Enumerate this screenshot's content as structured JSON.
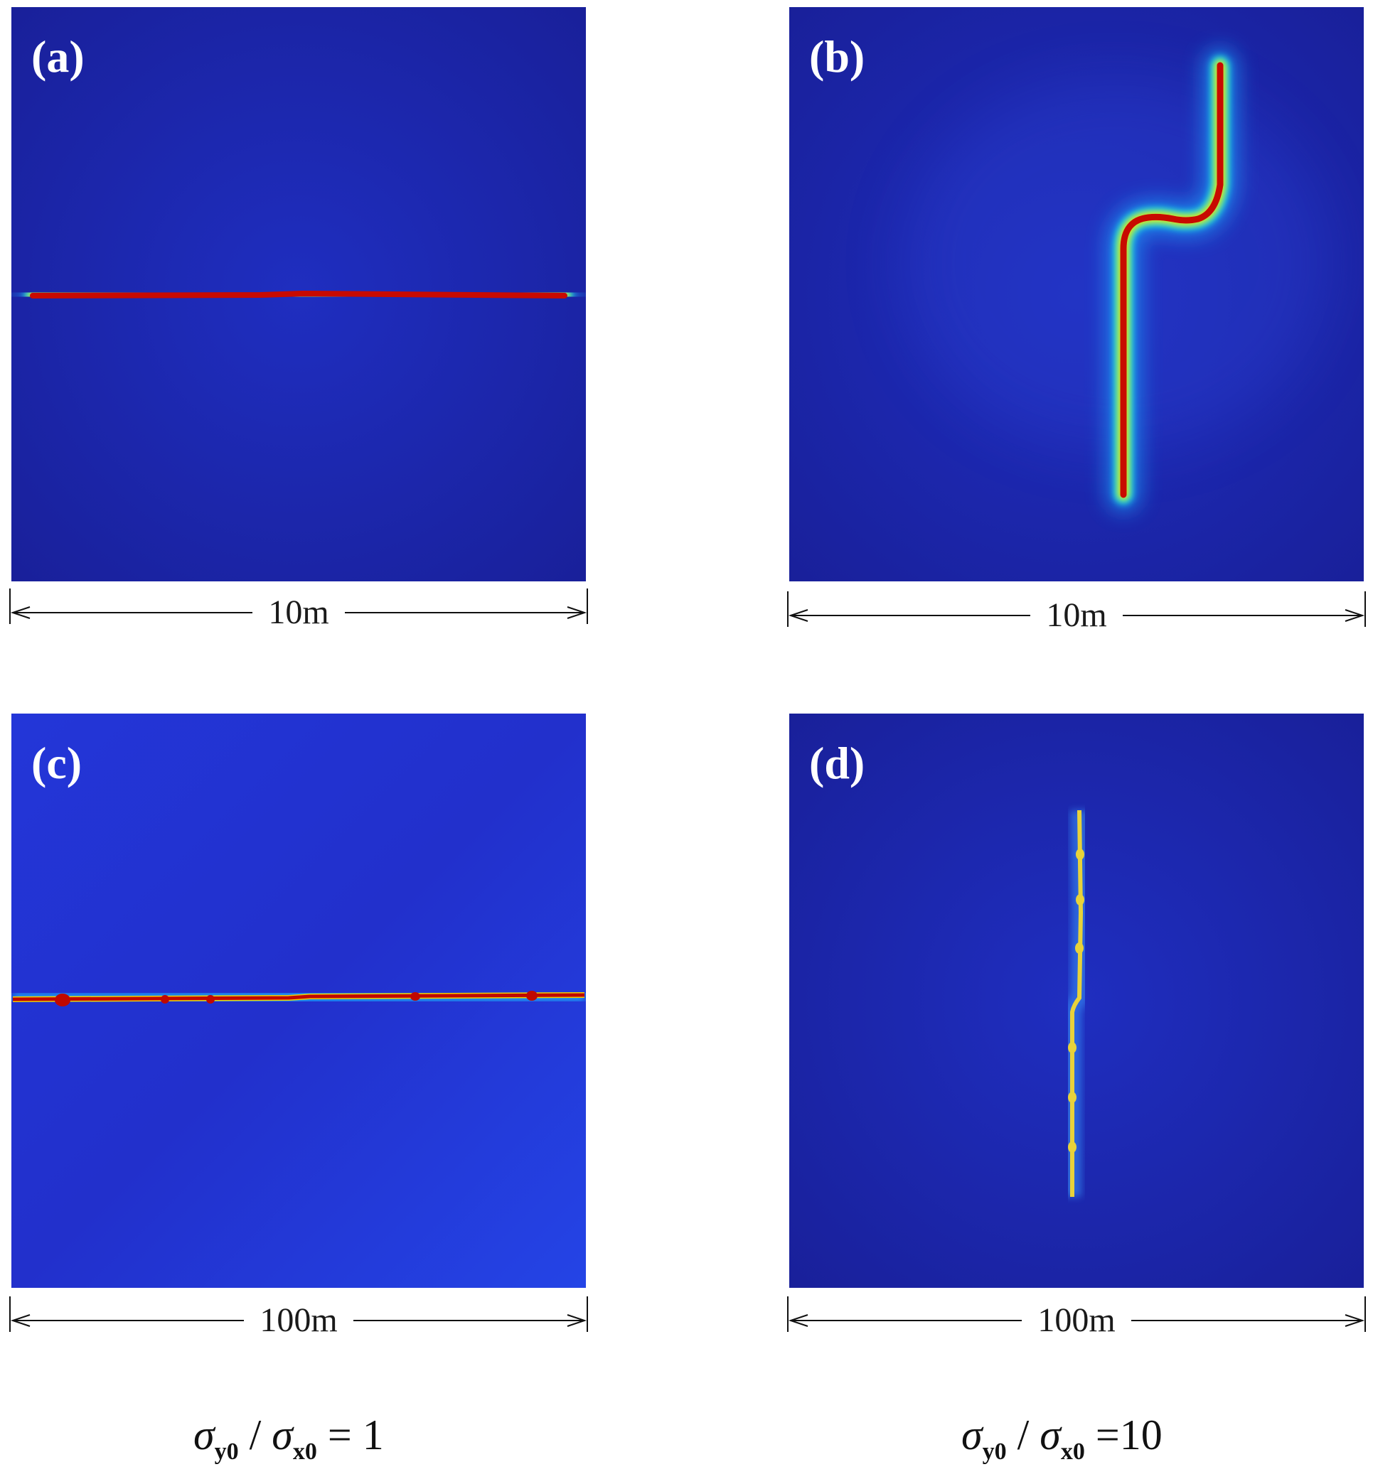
{
  "panels": {
    "a": {
      "label": "(a)",
      "scale_label": "10m"
    },
    "b": {
      "label": "(b)",
      "scale_label": "10m"
    },
    "c": {
      "label": "(c)",
      "scale_label": "100m"
    },
    "d": {
      "label": "(d)",
      "scale_label": "100m"
    }
  },
  "captions": {
    "left": {
      "sigma_y": "σ",
      "sub_y": "y0",
      "slash": " / ",
      "sigma_x": "σ",
      "sub_x": "x0",
      "rhs": " = 1"
    },
    "right": {
      "sigma_y": "σ",
      "sub_y": "y0",
      "slash": " / ",
      "sigma_x": "σ",
      "sub_x": "x0",
      "rhs": " =10"
    }
  },
  "colors": {
    "background_dark": "#1a1fa0",
    "background_c": "#2238dc",
    "crack_core": "#c80a00",
    "crack_halo": "#00c8ff",
    "crack_yellow": "#e8d23a"
  }
}
